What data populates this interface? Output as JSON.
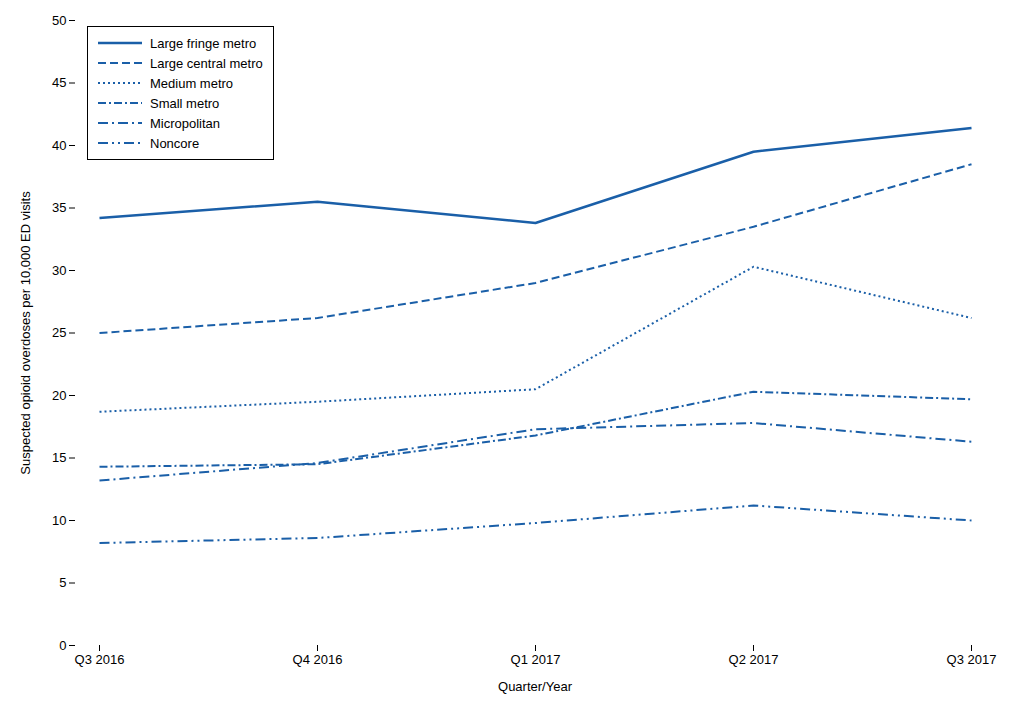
{
  "chart_data": {
    "type": "line",
    "categories": [
      "Q3 2016",
      "Q4 2016",
      "Q1 2017",
      "Q2 2017",
      "Q3 2017"
    ],
    "series": [
      {
        "name": "Large fringe metro",
        "values": [
          34.2,
          35.5,
          33.8,
          39.5,
          41.4
        ],
        "line_style": "solid"
      },
      {
        "name": "Large central metro",
        "values": [
          25.0,
          26.2,
          29.0,
          33.5,
          38.5
        ],
        "line_style": "dashed"
      },
      {
        "name": "Medium metro",
        "values": [
          18.7,
          19.5,
          20.5,
          30.3,
          26.2
        ],
        "line_style": "dotted"
      },
      {
        "name": "Small metro",
        "values": [
          14.3,
          14.5,
          16.8,
          20.3,
          19.7
        ],
        "line_style": "densely dashdotted"
      },
      {
        "name": "Micropolitan",
        "values": [
          13.2,
          14.6,
          17.3,
          17.8,
          16.3
        ],
        "line_style": "dashdotted"
      },
      {
        "name": "Noncore",
        "values": [
          8.2,
          8.6,
          9.8,
          11.2,
          10.0
        ],
        "line_style": "dashdotdotted"
      }
    ],
    "color": "#1a5fa8",
    "xlabel": "Quarter/Year",
    "ylabel": "Suspected opioid overdoses per 10,000 ED visits",
    "ylim": [
      0,
      50
    ],
    "yticks": [
      0,
      5,
      10,
      15,
      20,
      25,
      30,
      35,
      40,
      45,
      50
    ],
    "legend": "upper left",
    "grid": false
  }
}
